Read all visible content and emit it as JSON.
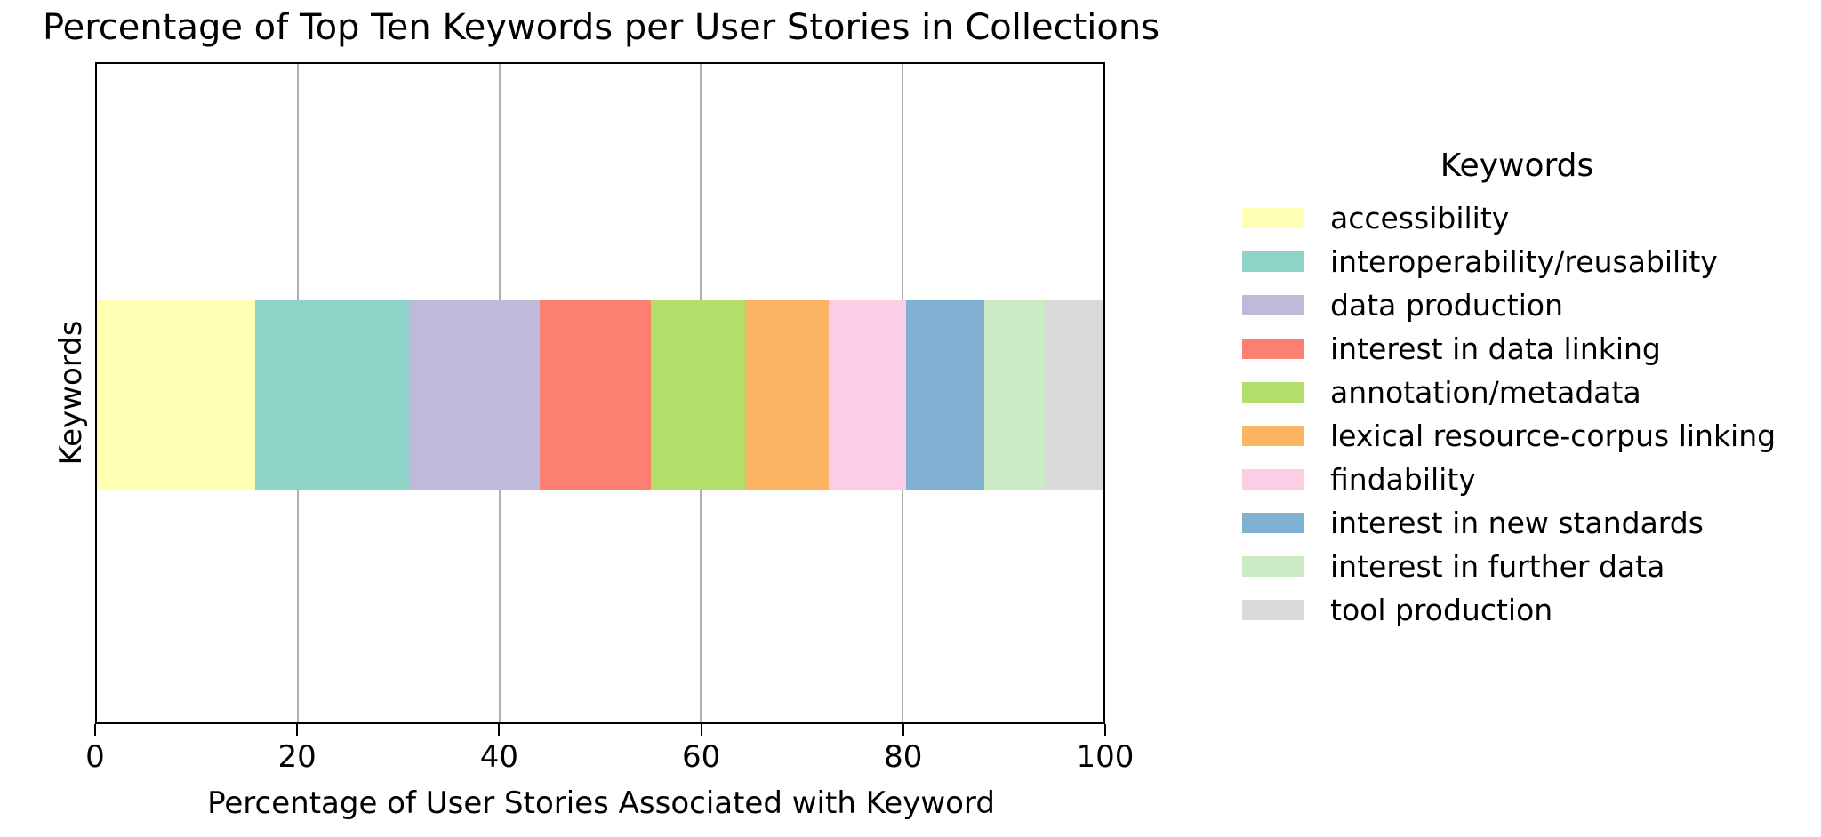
{
  "chart_data": {
    "type": "bar",
    "stacked": true,
    "orientation": "horizontal",
    "title": "Percentage of Top Ten Keywords per User Stories in Collections",
    "xlabel": "Percentage of User Stories Associated with Keyword",
    "ylabel": "Keywords",
    "xlim": [
      0,
      100
    ],
    "x_ticks": [
      0,
      20,
      40,
      60,
      80,
      100
    ],
    "grid": "vertical-gridlines-at-x-ticks",
    "gridline_color": "#b0b0b0",
    "legend_title": "Keywords",
    "legend_position": "right-of-plot",
    "categories": [
      "Keywords"
    ],
    "series": [
      {
        "name": "accessibility",
        "value": 15.7,
        "color": "#ffffb3"
      },
      {
        "name": "interoperability/reusability",
        "value": 15.3,
        "color": "#8dd3c7"
      },
      {
        "name": "data production",
        "value": 13.0,
        "color": "#bebada"
      },
      {
        "name": "interest in data linking",
        "value": 11.0,
        "color": "#fb8072"
      },
      {
        "name": "annotation/metadata",
        "value": 9.4,
        "color": "#b3de69"
      },
      {
        "name": "lexical resource-corpus linking",
        "value": 8.3,
        "color": "#fdb462"
      },
      {
        "name": "findability",
        "value": 7.7,
        "color": "#fccde5"
      },
      {
        "name": "interest in new standards",
        "value": 7.8,
        "color": "#80b1d3"
      },
      {
        "name": "interest in further data",
        "value": 6.0,
        "color": "#ccebc5"
      },
      {
        "name": "tool production",
        "value": 5.8,
        "color": "#d9d9d9"
      }
    ]
  }
}
